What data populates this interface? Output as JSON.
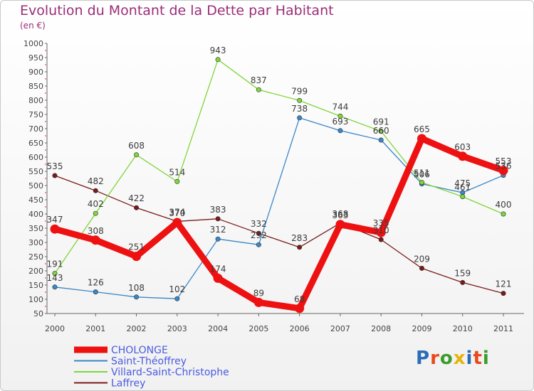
{
  "title": "Evolution du Montant de la Dette par Habitant",
  "unit": "(en €)",
  "logo": {
    "text": "Proxiti",
    "colors": [
      "#2b6db5",
      "#e84a1c",
      "#3a9d2c",
      "#e7b40a",
      "#2b6db5",
      "#e84a1c",
      "#3a9d2c"
    ]
  },
  "chart_data": {
    "type": "line",
    "title": "Evolution du Montant de la Dette par Habitant",
    "ylabel": "(en €)",
    "xlabel": "",
    "ylim": [
      50,
      1000
    ],
    "yticks": [
      50,
      100,
      150,
      200,
      250,
      300,
      350,
      400,
      450,
      500,
      550,
      600,
      650,
      700,
      750,
      800,
      850,
      900,
      950,
      1000
    ],
    "x": [
      "2000",
      "2001",
      "2002",
      "2003",
      "2004",
      "2005",
      "2006",
      "2007",
      "2008",
      "2009",
      "2010",
      "2011"
    ],
    "grid": false,
    "legend_position": "bottom-left",
    "series": [
      {
        "name": "CHOLONGE",
        "color": "#ee1111",
        "values": [
          347,
          308,
          251,
          370,
          174,
          89,
          68,
          363,
          335,
          665,
          603,
          553
        ]
      },
      {
        "name": "Saint-Théoffrey",
        "color": "#3a87c8",
        "values": [
          143,
          126,
          108,
          102,
          312,
          292,
          738,
          693,
          660,
          506,
          475,
          536
        ]
      },
      {
        "name": "Villard-Saint-Christophe",
        "color": "#7fd63a",
        "values": [
          191,
          402,
          608,
          514,
          943,
          837,
          799,
          744,
          691,
          511,
          461,
          400
        ]
      },
      {
        "name": "Laffrey",
        "color": "#7a1a1a",
        "values": [
          535,
          482,
          422,
          374,
          383,
          332,
          283,
          368,
          310,
          209,
          159,
          121
        ]
      }
    ]
  }
}
